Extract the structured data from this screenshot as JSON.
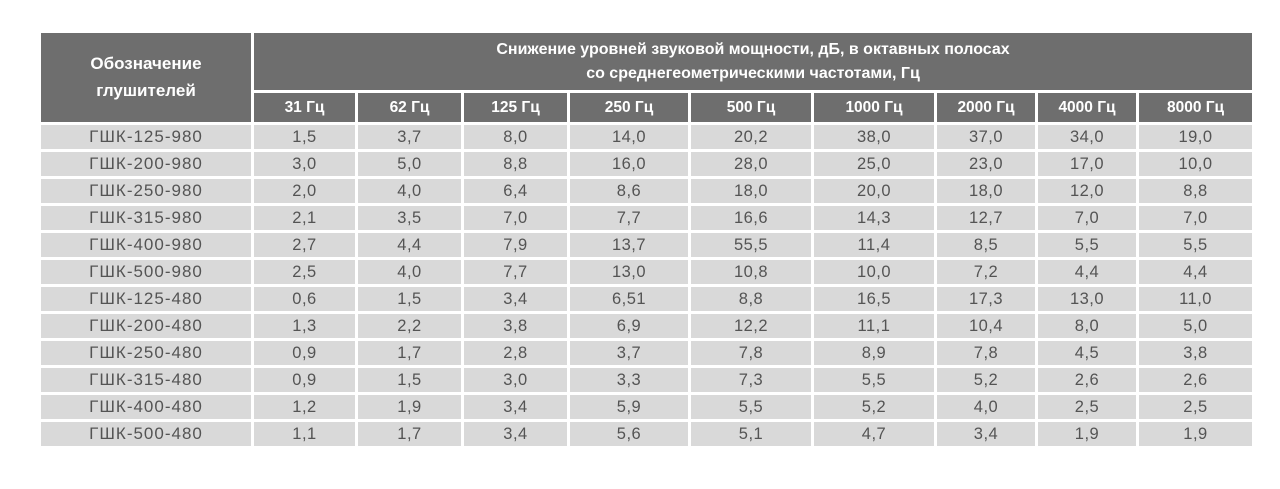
{
  "colors": {
    "header_bg": "#6e6e6e",
    "header_text": "#ffffff",
    "row_bg": "#d9d9d9",
    "row_text": "#545454",
    "gap": "#ffffff"
  },
  "table": {
    "designation_header": {
      "line1": "Обозначение",
      "line2": "глушителей"
    },
    "group_header": {
      "line1": "Снижение уровней звуковой мощности, дБ, в октавных полосах",
      "line2": "со среднегеометрическими частотами, Гц"
    },
    "freq_headers": [
      "31 Гц",
      "62 Гц",
      "125 Гц",
      "250 Гц",
      "500 Гц",
      "1000 Гц",
      "2000 Гц",
      "4000 Гц",
      "8000 Гц"
    ],
    "rows": [
      {
        "designation": "ГШК-125-980",
        "values": [
          "1,5",
          "3,7",
          "8,0",
          "14,0",
          "20,2",
          "38,0",
          "37,0",
          "34,0",
          "19,0"
        ]
      },
      {
        "designation": "ГШК-200-980",
        "values": [
          "3,0",
          "5,0",
          "8,8",
          "16,0",
          "28,0",
          "25,0",
          "23,0",
          "17,0",
          "10,0"
        ]
      },
      {
        "designation": "ГШК-250-980",
        "values": [
          "2,0",
          "4,0",
          "6,4",
          "8,6",
          "18,0",
          "20,0",
          "18,0",
          "12,0",
          "8,8"
        ]
      },
      {
        "designation": "ГШК-315-980",
        "values": [
          "2,1",
          "3,5",
          "7,0",
          "7,7",
          "16,6",
          "14,3",
          "12,7",
          "7,0",
          "7,0"
        ]
      },
      {
        "designation": "ГШК-400-980",
        "values": [
          "2,7",
          "4,4",
          "7,9",
          "13,7",
          "55,5",
          "11,4",
          "8,5",
          "5,5",
          "5,5"
        ]
      },
      {
        "designation": "ГШК-500-980",
        "values": [
          "2,5",
          "4,0",
          "7,7",
          "13,0",
          "10,8",
          "10,0",
          "7,2",
          "4,4",
          "4,4"
        ]
      },
      {
        "designation": "ГШК-125-480",
        "values": [
          "0,6",
          "1,5",
          "3,4",
          "6,51",
          "8,8",
          "16,5",
          "17,3",
          "13,0",
          "11,0"
        ]
      },
      {
        "designation": "ГШК-200-480",
        "values": [
          "1,3",
          "2,2",
          "3,8",
          "6,9",
          "12,2",
          "11,1",
          "10,4",
          "8,0",
          "5,0"
        ]
      },
      {
        "designation": "ГШК-250-480",
        "values": [
          "0,9",
          "1,7",
          "2,8",
          "3,7",
          "7,8",
          "8,9",
          "7,8",
          "4,5",
          "3,8"
        ]
      },
      {
        "designation": "ГШК-315-480",
        "values": [
          "0,9",
          "1,5",
          "3,0",
          "3,3",
          "7,3",
          "5,5",
          "5,2",
          "2,6",
          "2,6"
        ]
      },
      {
        "designation": "ГШК-400-480",
        "values": [
          "1,2",
          "1,9",
          "3,4",
          "5,9",
          "5,5",
          "5,2",
          "4,0",
          "2,5",
          "2,5"
        ]
      },
      {
        "designation": "ГШК-500-480",
        "values": [
          "1,1",
          "1,7",
          "3,4",
          "5,6",
          "5,1",
          "4,7",
          "3,4",
          "1,9",
          "1,9"
        ]
      }
    ]
  },
  "chart_data": {
    "type": "table",
    "title": "Снижение уровней звуковой мощности, дБ, в октавных полосах со среднегеометрическими частотами, Гц",
    "row_header": "Обозначение глушителей",
    "columns_hz": [
      31,
      62,
      125,
      250,
      500,
      1000,
      2000,
      4000,
      8000
    ],
    "rows": [
      {
        "name": "ГШК-125-980",
        "values": [
          1.5,
          3.7,
          8.0,
          14.0,
          20.2,
          38.0,
          37.0,
          34.0,
          19.0
        ]
      },
      {
        "name": "ГШК-200-980",
        "values": [
          3.0,
          5.0,
          8.8,
          16.0,
          28.0,
          25.0,
          23.0,
          17.0,
          10.0
        ]
      },
      {
        "name": "ГШК-250-980",
        "values": [
          2.0,
          4.0,
          6.4,
          8.6,
          18.0,
          20.0,
          18.0,
          12.0,
          8.8
        ]
      },
      {
        "name": "ГШК-315-980",
        "values": [
          2.1,
          3.5,
          7.0,
          7.7,
          16.6,
          14.3,
          12.7,
          7.0,
          7.0
        ]
      },
      {
        "name": "ГШК-400-980",
        "values": [
          2.7,
          4.4,
          7.9,
          13.7,
          55.5,
          11.4,
          8.5,
          5.5,
          5.5
        ]
      },
      {
        "name": "ГШК-500-980",
        "values": [
          2.5,
          4.0,
          7.7,
          13.0,
          10.8,
          10.0,
          7.2,
          4.4,
          4.4
        ]
      },
      {
        "name": "ГШК-125-480",
        "values": [
          0.6,
          1.5,
          3.4,
          6.51,
          8.8,
          16.5,
          17.3,
          13.0,
          11.0
        ]
      },
      {
        "name": "ГШК-200-480",
        "values": [
          1.3,
          2.2,
          3.8,
          6.9,
          12.2,
          11.1,
          10.4,
          8.0,
          5.0
        ]
      },
      {
        "name": "ГШК-250-480",
        "values": [
          0.9,
          1.7,
          2.8,
          3.7,
          7.8,
          8.9,
          7.8,
          4.5,
          3.8
        ]
      },
      {
        "name": "ГШК-315-480",
        "values": [
          0.9,
          1.5,
          3.0,
          3.3,
          7.3,
          5.5,
          5.2,
          2.6,
          2.6
        ]
      },
      {
        "name": "ГШК-400-480",
        "values": [
          1.2,
          1.9,
          3.4,
          5.9,
          5.5,
          5.2,
          4.0,
          2.5,
          2.5
        ]
      },
      {
        "name": "ГШК-500-480",
        "values": [
          1.1,
          1.7,
          3.4,
          5.6,
          5.1,
          4.7,
          3.4,
          1.9,
          1.9
        ]
      }
    ],
    "units": "дБ",
    "decimal_separator": ","
  }
}
